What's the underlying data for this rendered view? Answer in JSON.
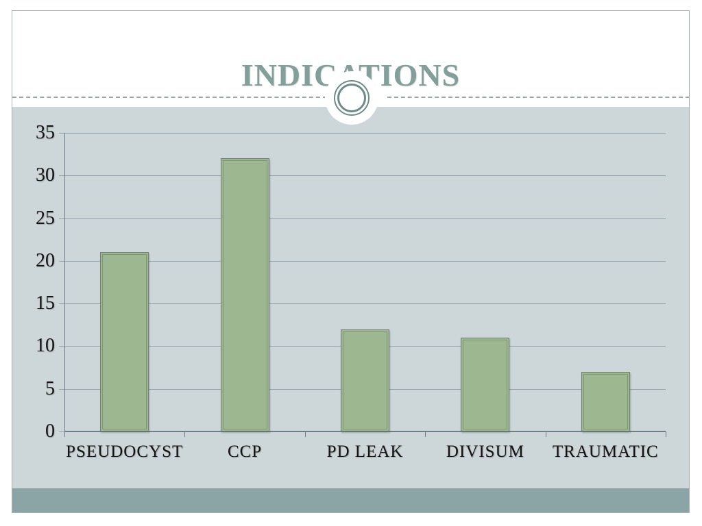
{
  "slide": {
    "title": "INDICATIONS",
    "ornament": "double-ring-circle"
  },
  "colors": {
    "title": "#829f9a",
    "slide_border": "#a8b0b3",
    "chart_bg": "#cdd6d9",
    "bottom_strip": "#8ba4a6",
    "bar_fill": "#9db790",
    "bar_border": "#6f7f72",
    "bar_inner_line": "#7d9772",
    "gridline": "#91a0a6",
    "axis": "#6c7e86",
    "label_text": "#141414",
    "dashed_line": "#9aa3a6",
    "ring": "#6d8b88"
  },
  "chart_data": {
    "type": "bar",
    "categories": [
      "PSEUDOCYST",
      "CCP",
      "PD LEAK",
      "DIVISUM",
      "TRAUMATIC"
    ],
    "values": [
      21,
      32,
      12,
      11,
      7
    ],
    "title": "INDICATIONS",
    "xlabel": "",
    "ylabel": "",
    "ylim": [
      0,
      35
    ],
    "ytick_step": 5,
    "grid": true,
    "legend": false,
    "bar_border_style": "double-inset"
  }
}
